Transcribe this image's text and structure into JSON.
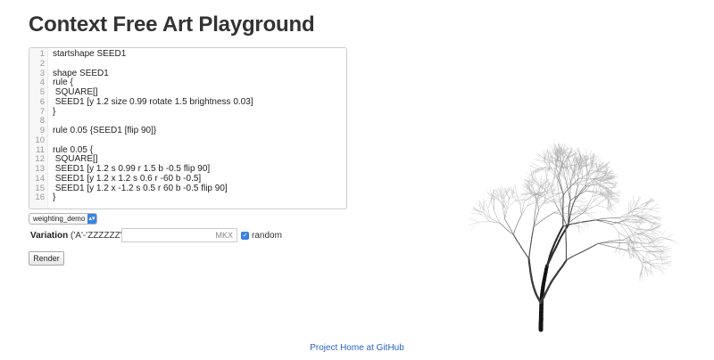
{
  "page": {
    "title": "Context Free Art Playground"
  },
  "editor": {
    "lines": [
      {
        "num": "1",
        "text": "startshape SEED1"
      },
      {
        "num": "2",
        "text": ""
      },
      {
        "num": "3",
        "text": "shape SEED1"
      },
      {
        "num": "4",
        "text": "rule {"
      },
      {
        "num": "5",
        "text": " SQUARE[]"
      },
      {
        "num": "6",
        "text": " SEED1 [y 1.2 size 0.99 rotate 1.5 brightness 0.03]"
      },
      {
        "num": "7",
        "text": "}"
      },
      {
        "num": "8",
        "text": ""
      },
      {
        "num": "9",
        "text": "rule 0.05 {SEED1 [flip 90]}"
      },
      {
        "num": "10",
        "text": ""
      },
      {
        "num": "11",
        "text": "rule 0.05 {"
      },
      {
        "num": "12",
        "text": " SQUARE[]"
      },
      {
        "num": "13",
        "text": " SEED1 [y 1.2 s 0.99 r 1.5 b -0.5 flip 90]"
      },
      {
        "num": "14",
        "text": " SEED1 [y 1.2 x 1.2 s 0.6 r -60 b -0.5]"
      },
      {
        "num": "15",
        "text": " SEED1 [y 1.2 x -1.2 s 0.5 r 60 b -0.5 flip 90]"
      },
      {
        "num": "16",
        "text": "}"
      }
    ]
  },
  "controls": {
    "example_select": {
      "value": "weighting_demo"
    },
    "variation": {
      "label": "Variation",
      "hint": "('A'-'ZZZZZZ')",
      "value": "MKX"
    },
    "random": {
      "label": "random",
      "checked": true
    },
    "render_label": "Render"
  },
  "footer": {
    "link_text": "Project Home at GitHub"
  },
  "colors": {
    "accent": "#3b82e0",
    "link": "#2a64c5",
    "text": "#333333"
  },
  "icons": {
    "select_arrow": "chevron-updown-icon",
    "checkbox": "checkmark-icon"
  }
}
